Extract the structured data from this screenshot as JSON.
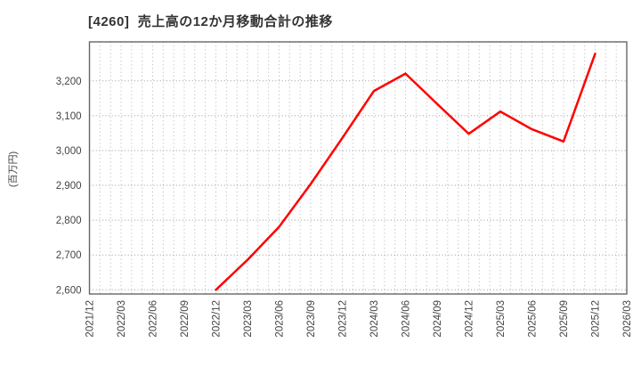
{
  "chart_data": {
    "type": "line",
    "title": "[4260]  売上高の12か月移動合計の推移",
    "ylabel": "(百万円)",
    "xlabel": "",
    "x_tick_labels": [
      "2021/12",
      "2022/03",
      "2022/06",
      "2022/09",
      "2022/12",
      "2023/03",
      "2023/06",
      "2023/09",
      "2023/12",
      "2024/03",
      "2024/06",
      "2024/09",
      "2024/12",
      "2025/03",
      "2025/06",
      "2025/09",
      "2025/12",
      "2026/03"
    ],
    "months_per_tick": 3,
    "minor_vertical_grid": "monthly",
    "grid": true,
    "legend_position": "none",
    "y_ticks": [
      {
        "value": 2600,
        "label": "2,600"
      },
      {
        "value": 2700,
        "label": "2,700"
      },
      {
        "value": 2800,
        "label": "2,800"
      },
      {
        "value": 2900,
        "label": "2,900"
      },
      {
        "value": 3000,
        "label": "3,000"
      },
      {
        "value": 3100,
        "label": "3,100"
      },
      {
        "value": 3200,
        "label": "3,200"
      }
    ],
    "ylim": [
      2588,
      3312
    ],
    "colors": {
      "line": "#ff0000",
      "grid": "#aaaaaa",
      "frame": "#666666",
      "tick_text": "#444444",
      "title_text": "#333333",
      "background": "#ffffff"
    },
    "series": [
      {
        "color": "#ff0000",
        "start_month_index": 12,
        "point_interval_months": 3,
        "x": [
          "2022/12",
          "2023/03",
          "2023/06",
          "2023/09",
          "2023/12",
          "2024/03",
          "2024/06",
          "2024/09",
          "2024/12",
          "2025/03",
          "2025/06",
          "2025/09",
          "2025/12"
        ],
        "values": [
          2600,
          2686,
          2781,
          2904,
          3036,
          3171,
          3221,
          3134,
          3048,
          3112,
          3061,
          3026,
          3278
        ]
      }
    ]
  }
}
